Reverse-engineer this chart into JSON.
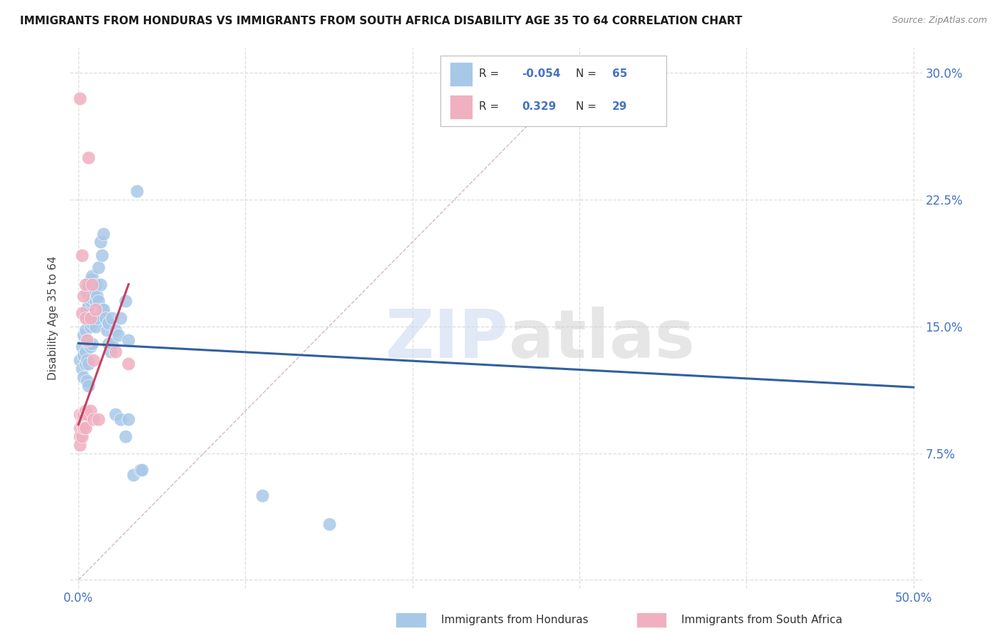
{
  "title": "IMMIGRANTS FROM HONDURAS VS IMMIGRANTS FROM SOUTH AFRICA DISABILITY AGE 35 TO 64 CORRELATION CHART",
  "source": "Source: ZipAtlas.com",
  "ylabel": "Disability Age 35 to 64",
  "xlim": [
    -0.005,
    0.505
  ],
  "ylim": [
    -0.005,
    0.315
  ],
  "xticks": [
    0.0,
    0.1,
    0.2,
    0.3,
    0.4,
    0.5
  ],
  "yticks": [
    0.0,
    0.075,
    0.15,
    0.225,
    0.3
  ],
  "watermark_zip": "ZIP",
  "watermark_atlas": "atlas",
  "blue_color": "#A8C8E8",
  "pink_color": "#F0B0C0",
  "blue_line_color": "#3060A0",
  "pink_line_color": "#C84060",
  "diag_line_color": "#D0B0B8",
  "background_color": "#FFFFFF",
  "grid_color": "#DEDEDE",
  "tick_color": "#4472C4",
  "blue_scatter": [
    [
      0.001,
      0.13
    ],
    [
      0.002,
      0.138
    ],
    [
      0.002,
      0.125
    ],
    [
      0.003,
      0.145
    ],
    [
      0.003,
      0.133
    ],
    [
      0.003,
      0.12
    ],
    [
      0.004,
      0.148
    ],
    [
      0.004,
      0.135
    ],
    [
      0.004,
      0.128
    ],
    [
      0.005,
      0.17
    ],
    [
      0.005,
      0.16
    ],
    [
      0.005,
      0.142
    ],
    [
      0.005,
      0.13
    ],
    [
      0.005,
      0.118
    ],
    [
      0.006,
      0.175
    ],
    [
      0.006,
      0.162
    ],
    [
      0.006,
      0.155
    ],
    [
      0.006,
      0.14
    ],
    [
      0.006,
      0.128
    ],
    [
      0.006,
      0.115
    ],
    [
      0.007,
      0.178
    ],
    [
      0.007,
      0.165
    ],
    [
      0.007,
      0.15
    ],
    [
      0.007,
      0.138
    ],
    [
      0.008,
      0.18
    ],
    [
      0.008,
      0.167
    ],
    [
      0.008,
      0.152
    ],
    [
      0.008,
      0.14
    ],
    [
      0.009,
      0.17
    ],
    [
      0.009,
      0.155
    ],
    [
      0.01,
      0.175
    ],
    [
      0.01,
      0.165
    ],
    [
      0.01,
      0.15
    ],
    [
      0.011,
      0.168
    ],
    [
      0.011,
      0.155
    ],
    [
      0.012,
      0.185
    ],
    [
      0.012,
      0.165
    ],
    [
      0.013,
      0.2
    ],
    [
      0.013,
      0.175
    ],
    [
      0.014,
      0.192
    ],
    [
      0.014,
      0.16
    ],
    [
      0.015,
      0.205
    ],
    [
      0.015,
      0.16
    ],
    [
      0.016,
      0.155
    ],
    [
      0.017,
      0.148
    ],
    [
      0.018,
      0.152
    ],
    [
      0.018,
      0.14
    ],
    [
      0.019,
      0.135
    ],
    [
      0.02,
      0.155
    ],
    [
      0.02,
      0.14
    ],
    [
      0.022,
      0.148
    ],
    [
      0.022,
      0.098
    ],
    [
      0.024,
      0.145
    ],
    [
      0.025,
      0.155
    ],
    [
      0.025,
      0.095
    ],
    [
      0.028,
      0.165
    ],
    [
      0.028,
      0.085
    ],
    [
      0.03,
      0.142
    ],
    [
      0.03,
      0.095
    ],
    [
      0.033,
      0.062
    ],
    [
      0.035,
      0.23
    ],
    [
      0.037,
      0.065
    ],
    [
      0.038,
      0.065
    ],
    [
      0.11,
      0.05
    ],
    [
      0.15,
      0.033
    ]
  ],
  "pink_scatter": [
    [
      0.001,
      0.285
    ],
    [
      0.001,
      0.098
    ],
    [
      0.001,
      0.09
    ],
    [
      0.001,
      0.085
    ],
    [
      0.001,
      0.08
    ],
    [
      0.002,
      0.192
    ],
    [
      0.002,
      0.158
    ],
    [
      0.002,
      0.098
    ],
    [
      0.002,
      0.092
    ],
    [
      0.002,
      0.085
    ],
    [
      0.003,
      0.168
    ],
    [
      0.003,
      0.098
    ],
    [
      0.003,
      0.09
    ],
    [
      0.004,
      0.175
    ],
    [
      0.004,
      0.155
    ],
    [
      0.004,
      0.1
    ],
    [
      0.004,
      0.09
    ],
    [
      0.005,
      0.142
    ],
    [
      0.005,
      0.098
    ],
    [
      0.006,
      0.25
    ],
    [
      0.007,
      0.155
    ],
    [
      0.007,
      0.1
    ],
    [
      0.008,
      0.175
    ],
    [
      0.009,
      0.13
    ],
    [
      0.009,
      0.095
    ],
    [
      0.01,
      0.16
    ],
    [
      0.012,
      0.095
    ],
    [
      0.022,
      0.135
    ],
    [
      0.03,
      0.128
    ]
  ],
  "blue_line_x": [
    0.0,
    0.5
  ],
  "blue_line_y": [
    0.14,
    0.114
  ],
  "pink_line_x": [
    0.0,
    0.03
  ],
  "pink_line_y": [
    0.092,
    0.175
  ],
  "diag_line_x": [
    0.0,
    0.305
  ],
  "diag_line_y": [
    0.0,
    0.305
  ]
}
